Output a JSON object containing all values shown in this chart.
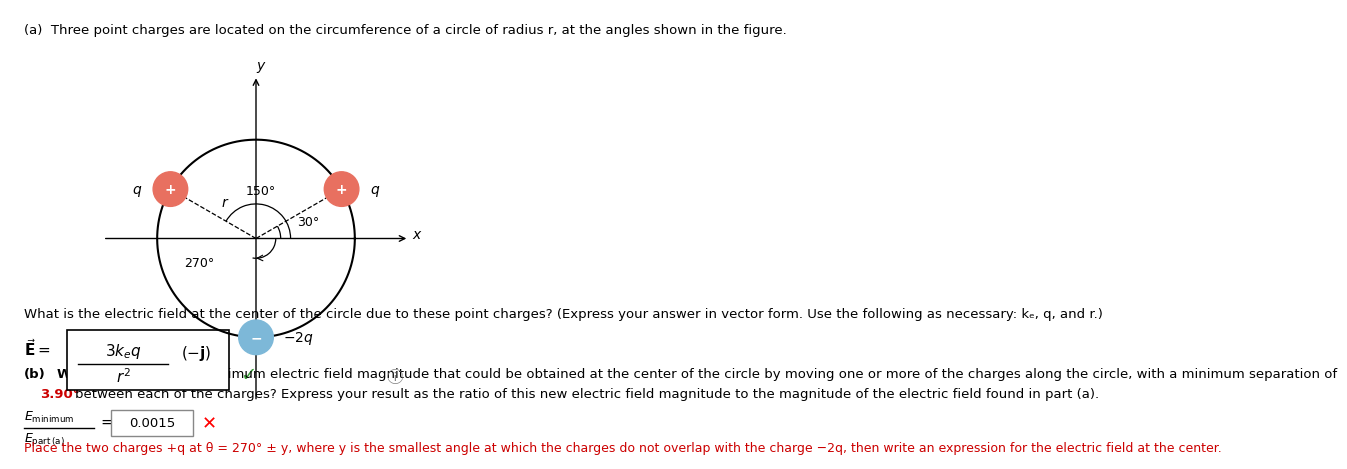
{
  "title_a": "(a)  Three point charges are located on the circumference of a circle of radius r, at the angles shown in the figure.",
  "charge_plus_color": "#E87060",
  "charge_minus_color": "#7DB8D8",
  "angle_label_150": "150°",
  "angle_label_30": "30°",
  "angle_label_270": "270°",
  "question_a": "What is the electric field at the center of the circle due to these point charges? (Express your answer in vector form. Use the following as necessary: kₑ, q, and r.)",
  "part_b_highlight": "3.90°",
  "ratio_value": "0.0015",
  "hint_text": "Place the two charges +q at θ = 270° ± y, where y is the smallest angle at which the charges do not overlap with the charge −2q, then write an expression for the electric field at the center.",
  "bg_color": "#ffffff",
  "text_color": "#000000",
  "red_color": "#CC0000",
  "green_color": "#3a9c3a"
}
